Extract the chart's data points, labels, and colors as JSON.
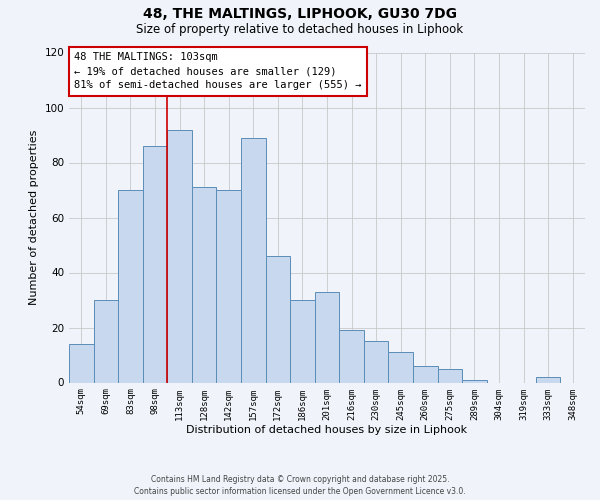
{
  "title": "48, THE MALTINGS, LIPHOOK, GU30 7DG",
  "subtitle": "Size of property relative to detached houses in Liphook",
  "xlabel": "Distribution of detached houses by size in Liphook",
  "ylabel": "Number of detached properties",
  "bar_labels": [
    "54sqm",
    "69sqm",
    "83sqm",
    "98sqm",
    "113sqm",
    "128sqm",
    "142sqm",
    "157sqm",
    "172sqm",
    "186sqm",
    "201sqm",
    "216sqm",
    "230sqm",
    "245sqm",
    "260sqm",
    "275sqm",
    "289sqm",
    "304sqm",
    "319sqm",
    "333sqm",
    "348sqm"
  ],
  "bar_heights": [
    14,
    30,
    70,
    86,
    92,
    71,
    70,
    89,
    46,
    30,
    33,
    19,
    15,
    11,
    6,
    5,
    1,
    0,
    0,
    2,
    0
  ],
  "bar_color": "#C8D8EE",
  "bar_edge_color": "#5B8DB8",
  "ylim": [
    0,
    120
  ],
  "yticks": [
    0,
    20,
    40,
    60,
    80,
    100,
    120
  ],
  "vline_x_index": 3.5,
  "vline_color": "#CC0000",
  "annotation_lines": [
    "48 THE MALTINGS: 103sqm",
    "← 19% of detached houses are smaller (129)",
    "81% of semi-detached houses are larger (555) →"
  ],
  "footer_line1": "Contains HM Land Registry data © Crown copyright and database right 2025.",
  "footer_line2": "Contains public sector information licensed under the Open Government Licence v3.0.",
  "background_color": "#F0F4FA",
  "plot_bg_color": "#F0F4FA",
  "grid_color": "#C8C8C8"
}
